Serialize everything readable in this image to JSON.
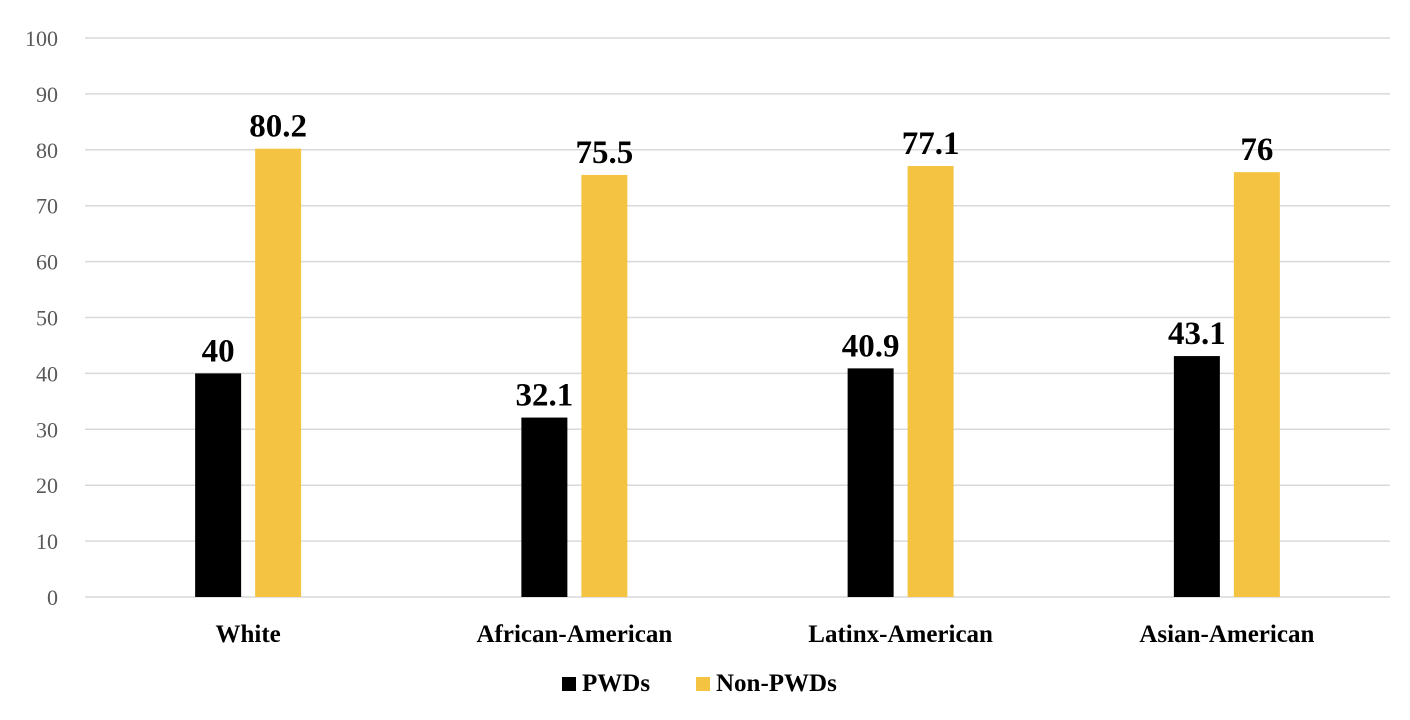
{
  "chart_data": {
    "type": "bar",
    "title": "",
    "xlabel": "",
    "ylabel": "",
    "categories": [
      "White",
      "African-American",
      "Latinx-American",
      "Asian-American"
    ],
    "series": [
      {
        "name": "PWDs",
        "values": [
          40,
          32.1,
          40.9,
          43.1
        ],
        "color": "#000000"
      },
      {
        "name": "Non-PWDs",
        "values": [
          80.2,
          75.5,
          77.1,
          76
        ],
        "color": "#f4c342"
      }
    ],
    "ylim": [
      0,
      100
    ],
    "yticks": [
      0,
      10,
      20,
      30,
      40,
      50,
      60,
      70,
      80,
      90,
      100
    ],
    "grid": true,
    "legend": "bottom-center",
    "data_labels": true
  }
}
